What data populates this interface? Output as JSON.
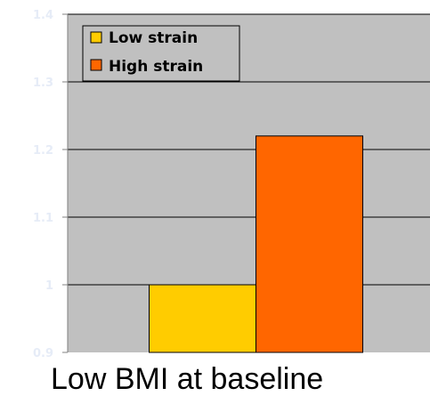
{
  "chart_data": {
    "type": "bar",
    "categories": [
      "Low BMI at baseline"
    ],
    "series": [
      {
        "name": "Low strain",
        "values": [
          1.0
        ],
        "color": "#ffcc00"
      },
      {
        "name": "High strain",
        "values": [
          1.22
        ],
        "color": "#ff6600"
      }
    ],
    "xlabel": "Low BMI at baseline",
    "ylabel": "",
    "ylim": [
      0.9,
      1.4
    ],
    "yticks": [
      1.4,
      1.3,
      1.2,
      1.1,
      1,
      0.9
    ],
    "ytick_labels": [
      "1.4",
      "1.3",
      "1.2",
      "1.1",
      "1",
      "0.9"
    ],
    "grid": true,
    "legend_position": "top-left",
    "colors": {
      "plot_background": "#c0c0c0",
      "gridline": "#000000",
      "axis_line": "#808080",
      "tick_label": "#e6ecf7",
      "page_background": "#ffffff"
    }
  }
}
